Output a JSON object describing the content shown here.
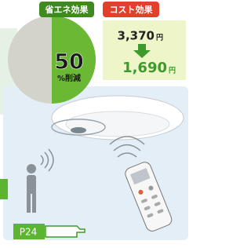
{
  "badges": {
    "saving": "省エネ効果",
    "cost": "コスト効果"
  },
  "pie": {
    "value": 50,
    "unit": "%削減"
  },
  "cost": {
    "before": {
      "amount": "3,370",
      "unit": "円"
    },
    "after": {
      "amount": "1,690",
      "unit": "円"
    }
  },
  "page_ref": "P24"
}
